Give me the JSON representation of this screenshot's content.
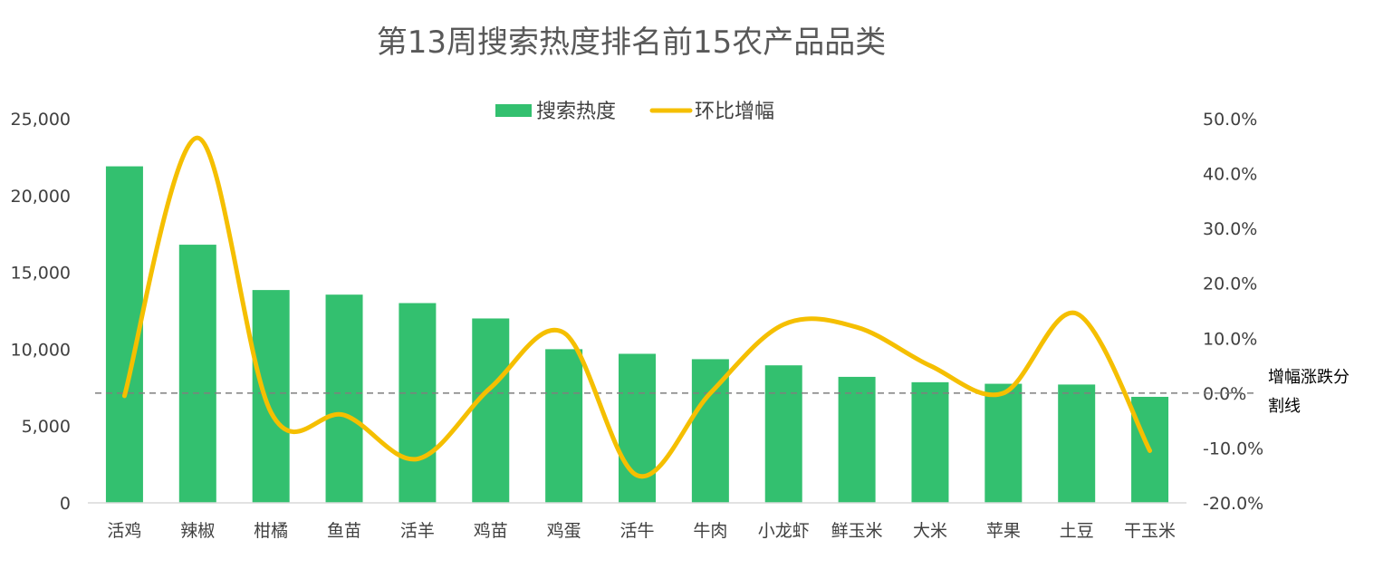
{
  "colors": {
    "bar": "#33c06f",
    "line": "#f5bf00",
    "zero_line": "#7f7f7f",
    "axis": "#d9d9d9",
    "text": "#404040"
  },
  "chart_data": {
    "type": "bar+line",
    "title": "第13周搜索热度排名前15农产品品类",
    "categories": [
      "活鸡",
      "辣椒",
      "柑橘",
      "鱼苗",
      "活羊",
      "鸡苗",
      "鸡蛋",
      "活牛",
      "牛肉",
      "小龙虾",
      "鲜玉米",
      "大米",
      "苹果",
      "土豆",
      "干玉米"
    ],
    "series": [
      {
        "name": "搜索热度",
        "type": "bar",
        "axis": "left",
        "values": [
          21900,
          16800,
          13850,
          13550,
          13000,
          12000,
          10000,
          9700,
          9350,
          8950,
          8200,
          7850,
          7750,
          7700,
          6900
        ]
      },
      {
        "name": "环比增幅",
        "type": "line",
        "axis": "right",
        "smooth": true,
        "values": [
          -0.5,
          46.5,
          -3.5,
          -4.0,
          -12.0,
          1.0,
          11.0,
          -15.0,
          0.0,
          12.5,
          12.0,
          5.0,
          0.0,
          14.5,
          -10.5
        ]
      }
    ],
    "y_left": {
      "min": 0,
      "max": 25000,
      "ticks": [
        "0",
        "5,000",
        "10,000",
        "15,000",
        "20,000",
        "25,000"
      ]
    },
    "y_right": {
      "min": -20,
      "max": 50,
      "ticks": [
        "-20.0%",
        "-10.0%",
        "0.0%",
        "10.0%",
        "20.0%",
        "30.0%",
        "40.0%",
        "50.0%"
      ]
    },
    "reference_line": {
      "axis": "right",
      "value": 0,
      "style": "dashed",
      "label_lines": [
        "增幅涨跌分",
        "割线"
      ]
    },
    "legend": {
      "position": "top-center",
      "items": [
        "搜索热度",
        "环比增幅"
      ]
    },
    "grid": false
  }
}
